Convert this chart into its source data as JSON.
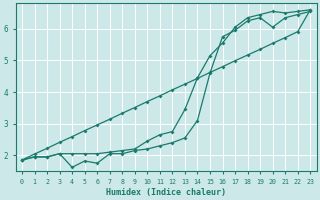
{
  "xlabel": "Humidex (Indice chaleur)",
  "background_color": "#cde8e8",
  "grid_color": "#ffffff",
  "line_color": "#1a7a6e",
  "x_values": [
    0,
    1,
    2,
    3,
    4,
    5,
    6,
    7,
    8,
    9,
    10,
    11,
    12,
    13,
    14,
    15,
    16,
    17,
    18,
    19,
    20,
    21,
    22,
    23
  ],
  "line1": [
    1.85,
    1.95,
    1.95,
    2.05,
    1.62,
    1.82,
    1.75,
    2.05,
    2.05,
    2.15,
    2.2,
    2.3,
    2.4,
    2.55,
    3.1,
    4.6,
    5.75,
    5.95,
    6.25,
    6.35,
    6.05,
    6.35,
    6.45,
    6.55
  ],
  "line2": [
    1.85,
    1.95,
    1.95,
    2.05,
    2.05,
    2.05,
    2.05,
    2.1,
    2.15,
    2.2,
    2.45,
    2.65,
    2.75,
    3.45,
    4.45,
    5.15,
    5.55,
    6.05,
    6.35,
    6.45,
    6.55,
    6.5,
    6.55,
    6.6
  ],
  "line3": [
    1.85,
    2.04,
    2.22,
    2.41,
    2.59,
    2.78,
    2.96,
    3.14,
    3.33,
    3.51,
    3.7,
    3.88,
    4.07,
    4.25,
    4.43,
    4.62,
    4.8,
    4.99,
    5.17,
    5.35,
    5.54,
    5.72,
    5.91,
    6.6
  ],
  "ylim": [
    1.5,
    6.8
  ],
  "xlim": [
    -0.5,
    23.5
  ],
  "yticks": [
    2,
    3,
    4,
    5,
    6
  ],
  "xticks": [
    0,
    1,
    2,
    3,
    4,
    5,
    6,
    7,
    8,
    9,
    10,
    11,
    12,
    13,
    14,
    15,
    16,
    17,
    18,
    19,
    20,
    21,
    22,
    23
  ],
  "figsize": [
    3.2,
    2.0
  ],
  "dpi": 100
}
